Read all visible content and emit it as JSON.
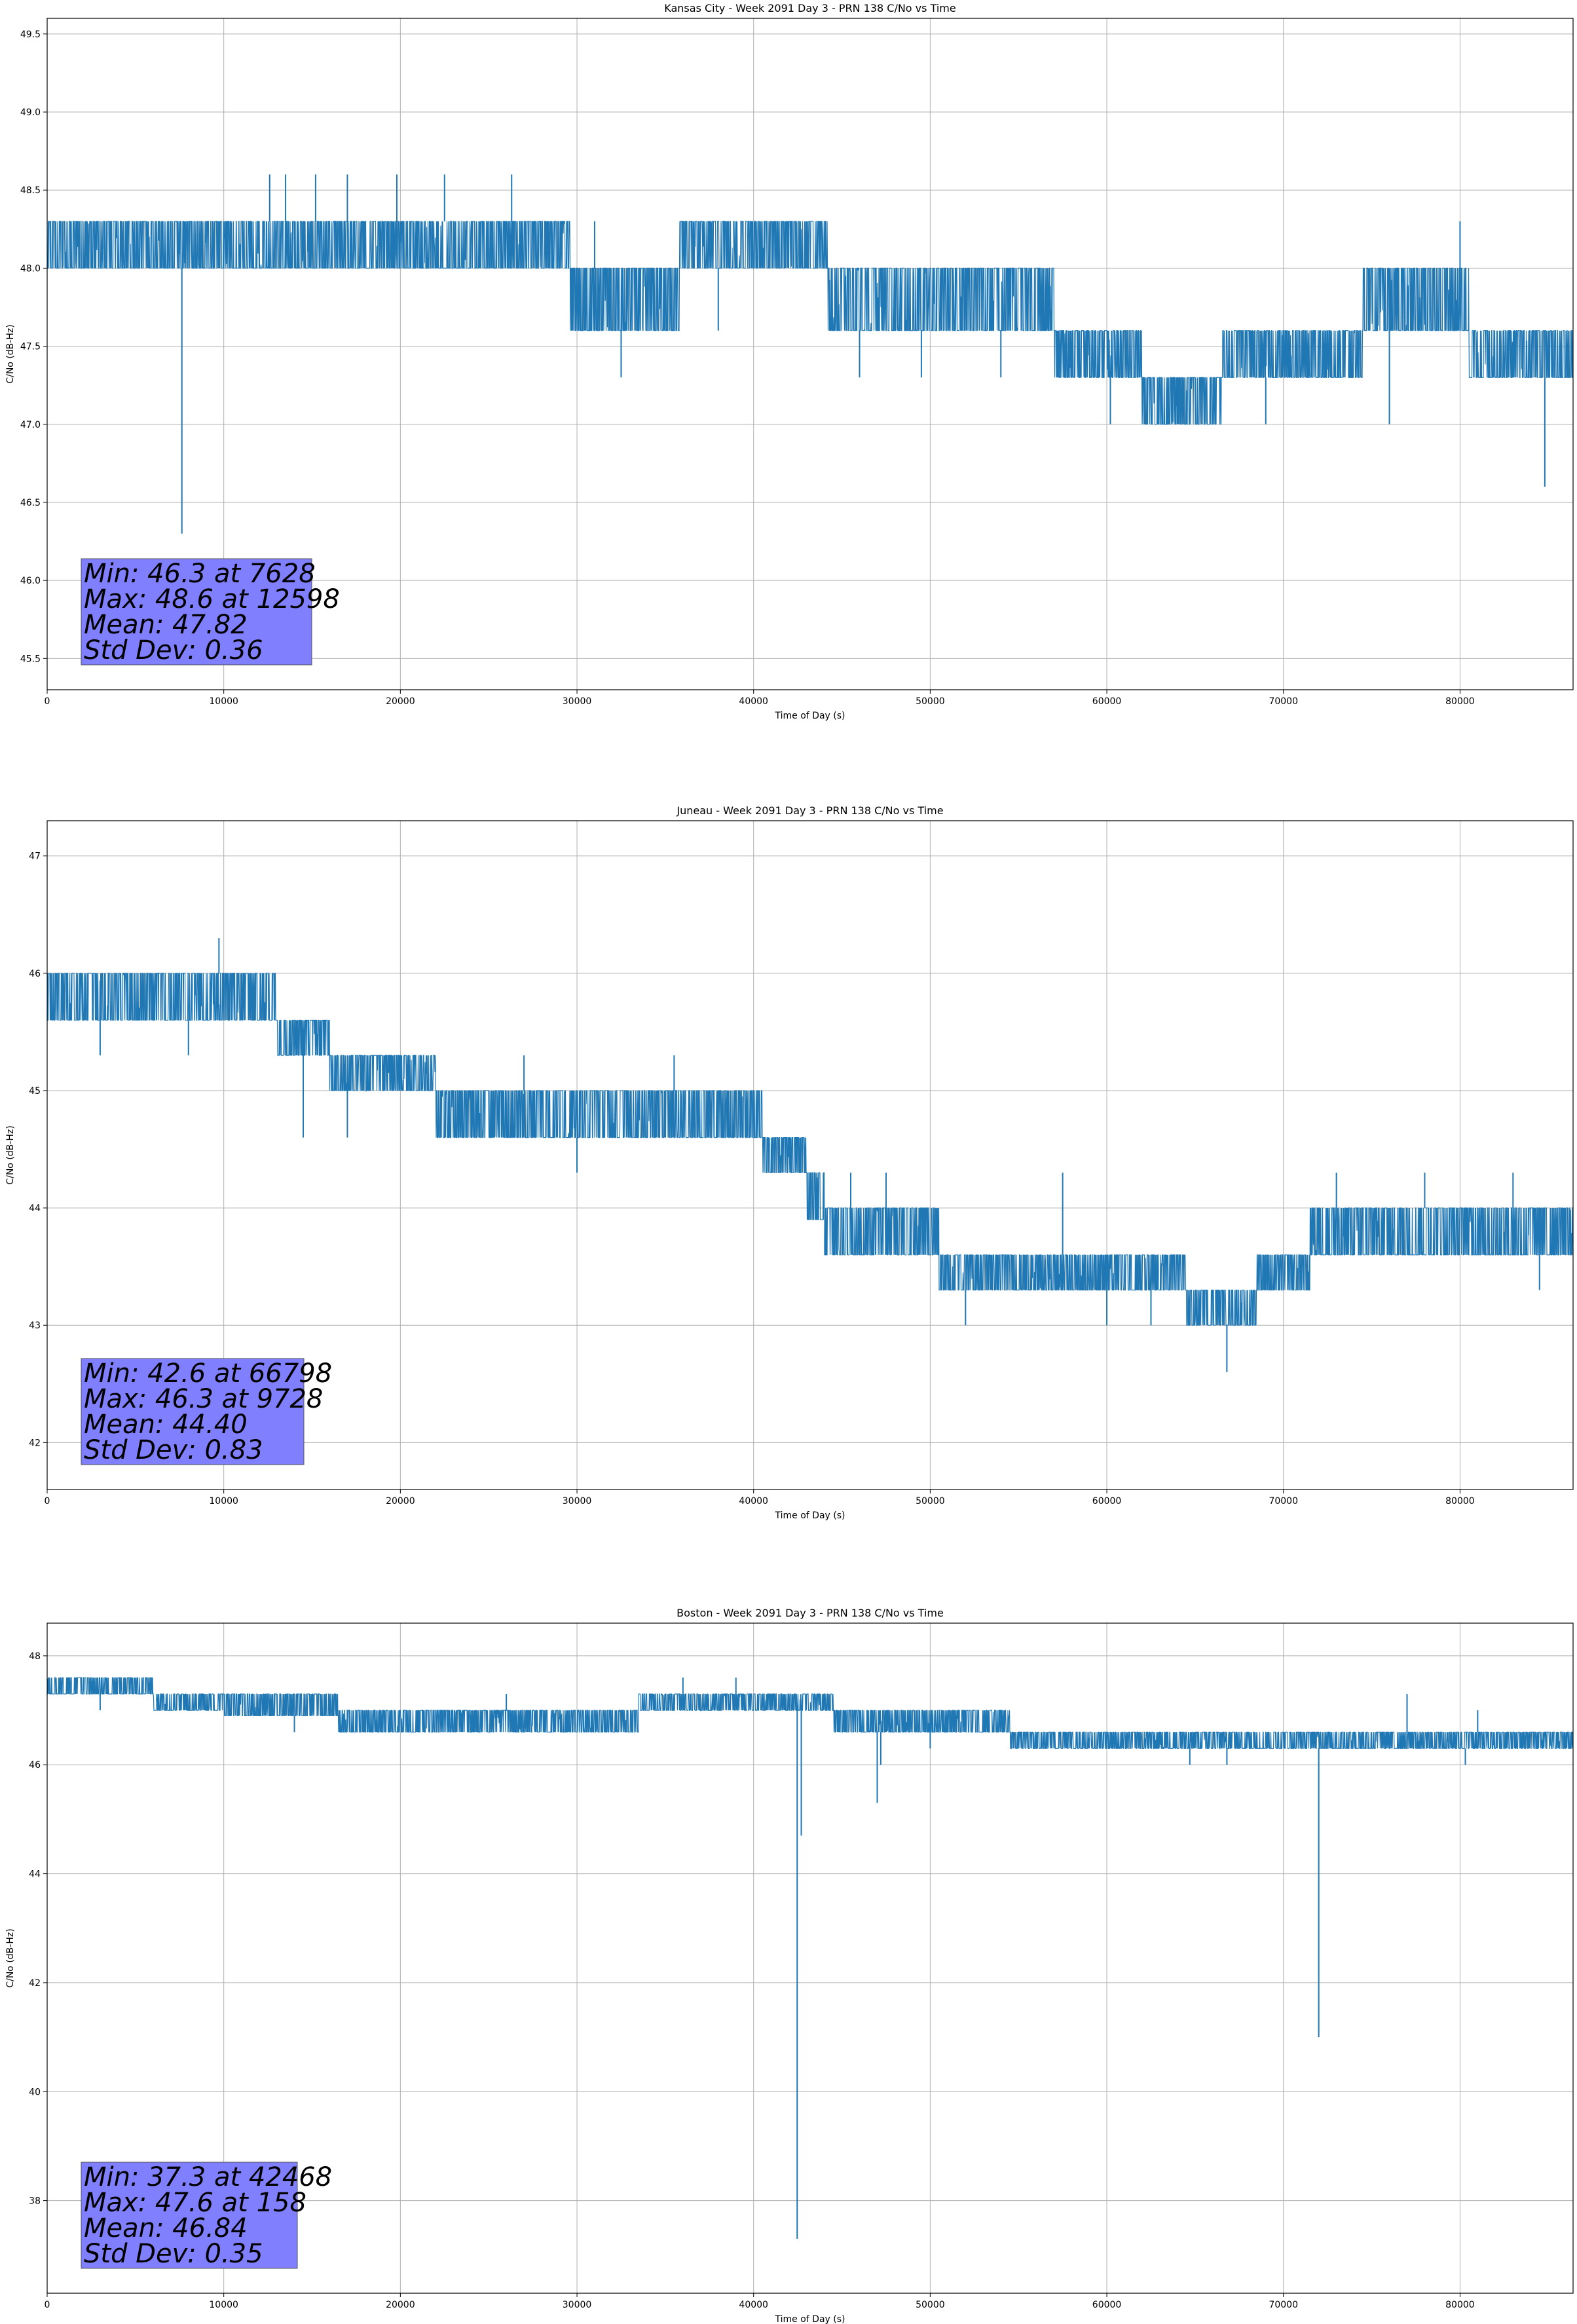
{
  "colors": {
    "series": "#1f77b4",
    "grid": "#b0b0b0",
    "statbox": "#8080ff"
  },
  "chart_data": [
    {
      "type": "line",
      "title": "Kansas City - Week 2091 Day 3 - PRN 138 C/No vs Time",
      "xlabel": "Time of Day (s)",
      "ylabel": "C/No (dB-Hz)",
      "xlim": [
        0,
        86400
      ],
      "ylim": [
        45.3,
        49.6
      ],
      "xticks": [
        0,
        10000,
        20000,
        30000,
        40000,
        50000,
        60000,
        70000,
        80000
      ],
      "yticks": [
        45.5,
        46.0,
        46.5,
        47.0,
        47.5,
        48.0,
        48.5,
        49.0,
        49.5
      ],
      "ytick_decimals": 1,
      "grid": true,
      "stats": [
        "Min: 46.3 at 7628",
        "Max: 48.6 at 12598",
        "Mean: 47.82",
        "Std Dev: 0.36"
      ],
      "series": [
        {
          "band": [
            [
              0,
              48.0,
              48.3
            ],
            [
              5000,
              48.0,
              48.3
            ],
            [
              12000,
              48.0,
              48.3
            ],
            [
              20000,
              48.0,
              48.3
            ],
            [
              29500,
              48.0,
              48.3
            ],
            [
              29600,
              47.6,
              48.0
            ],
            [
              35000,
              47.6,
              48.0
            ],
            [
              35800,
              48.0,
              48.3
            ],
            [
              44000,
              48.0,
              48.3
            ],
            [
              44200,
              47.6,
              48.0
            ],
            [
              56000,
              47.6,
              48.0
            ],
            [
              57000,
              47.3,
              47.6
            ],
            [
              61500,
              47.3,
              47.6
            ],
            [
              62000,
              47.0,
              47.3
            ],
            [
              66000,
              47.0,
              47.3
            ],
            [
              66500,
              47.3,
              47.6
            ],
            [
              74000,
              47.3,
              47.6
            ],
            [
              74500,
              47.6,
              48.0
            ],
            [
              80000,
              47.6,
              48.0
            ],
            [
              80500,
              47.3,
              47.6
            ],
            [
              86400,
              47.3,
              47.6
            ]
          ],
          "spikes": [
            [
              7628,
              46.3
            ],
            [
              12598,
              48.6
            ],
            [
              13500,
              48.6
            ],
            [
              15200,
              48.6
            ],
            [
              17000,
              48.6
            ],
            [
              19800,
              48.6
            ],
            [
              22500,
              48.6
            ],
            [
              26300,
              48.6
            ],
            [
              31000,
              48.3
            ],
            [
              32500,
              47.3
            ],
            [
              38000,
              47.6
            ],
            [
              42800,
              48.3
            ],
            [
              46000,
              47.3
            ],
            [
              49500,
              47.3
            ],
            [
              54000,
              47.3
            ],
            [
              60200,
              47.0
            ],
            [
              64000,
              47.0
            ],
            [
              69000,
              47.0
            ],
            [
              76000,
              47.0
            ],
            [
              80000,
              48.3
            ],
            [
              84800,
              46.6
            ]
          ]
        }
      ]
    },
    {
      "type": "line",
      "title": "Juneau - Week 2091 Day 3 - PRN 138 C/No vs Time",
      "xlabel": "Time of Day (s)",
      "ylabel": "C/No (dB-Hz)",
      "xlim": [
        0,
        86400
      ],
      "ylim": [
        41.6,
        47.3
      ],
      "xticks": [
        0,
        10000,
        20000,
        30000,
        40000,
        50000,
        60000,
        70000,
        80000
      ],
      "yticks": [
        42,
        43,
        44,
        45,
        46,
        47
      ],
      "ytick_decimals": 0,
      "grid": true,
      "stats": [
        "Min: 42.6 at 66798",
        "Max: 46.3 at 9728",
        "Mean: 44.40",
        "Std Dev: 0.83"
      ],
      "series": [
        {
          "band": [
            [
              0,
              45.6,
              46.0
            ],
            [
              12500,
              45.6,
              46.0
            ],
            [
              13000,
              45.3,
              45.6
            ],
            [
              15500,
              45.3,
              45.6
            ],
            [
              16000,
              45.0,
              45.3
            ],
            [
              21500,
              45.0,
              45.3
            ],
            [
              22000,
              44.6,
              45.0
            ],
            [
              40000,
              44.6,
              45.0
            ],
            [
              40500,
              44.3,
              44.6
            ],
            [
              42500,
              44.3,
              44.6
            ],
            [
              43000,
              43.9,
              44.3
            ],
            [
              44000,
              43.6,
              44.0
            ],
            [
              50000,
              43.6,
              44.0
            ],
            [
              50500,
              43.3,
              43.6
            ],
            [
              64000,
              43.3,
              43.6
            ],
            [
              64500,
              43.0,
              43.3
            ],
            [
              68000,
              43.0,
              43.3
            ],
            [
              68500,
              43.3,
              43.6
            ],
            [
              71000,
              43.3,
              43.6
            ],
            [
              71500,
              43.6,
              44.0
            ],
            [
              86400,
              43.6,
              44.0
            ]
          ],
          "spikes": [
            [
              9728,
              46.3
            ],
            [
              3000,
              45.3
            ],
            [
              8000,
              45.3
            ],
            [
              14500,
              44.6
            ],
            [
              17000,
              44.6
            ],
            [
              24000,
              44.6
            ],
            [
              27000,
              45.3
            ],
            [
              30000,
              44.3
            ],
            [
              35500,
              45.3
            ],
            [
              45500,
              44.3
            ],
            [
              47500,
              44.3
            ],
            [
              52000,
              43.0
            ],
            [
              57500,
              44.3
            ],
            [
              60000,
              43.0
            ],
            [
              62500,
              43.0
            ],
            [
              66798,
              42.6
            ],
            [
              73000,
              44.3
            ],
            [
              78000,
              44.3
            ],
            [
              83000,
              44.3
            ],
            [
              84500,
              43.3
            ]
          ]
        }
      ]
    },
    {
      "type": "line",
      "title": "Boston - Week 2091 Day 3 - PRN 138 C/No vs Time",
      "xlabel": "Time of Day (s)",
      "ylabel": "C/No (dB-Hz)",
      "xlim": [
        0,
        86400
      ],
      "ylim": [
        36.3,
        48.6
      ],
      "xticks": [
        0,
        10000,
        20000,
        30000,
        40000,
        50000,
        60000,
        70000,
        80000
      ],
      "yticks": [
        38,
        40,
        42,
        44,
        46,
        48
      ],
      "ytick_decimals": 0,
      "grid": true,
      "stats": [
        "Min: 37.3 at 42468",
        "Max: 47.6 at 158",
        "Mean: 46.84",
        "Std Dev: 0.35"
      ],
      "series": [
        {
          "band": [
            [
              0,
              47.3,
              47.6
            ],
            [
              5500,
              47.3,
              47.6
            ],
            [
              6000,
              47.0,
              47.3
            ],
            [
              9500,
              47.0,
              47.3
            ],
            [
              10000,
              46.9,
              47.3
            ],
            [
              16000,
              46.9,
              47.3
            ],
            [
              16500,
              46.6,
              47.0
            ],
            [
              33000,
              46.6,
              47.0
            ],
            [
              33500,
              47.0,
              47.3
            ],
            [
              44000,
              47.0,
              47.3
            ],
            [
              44500,
              46.6,
              47.0
            ],
            [
              54000,
              46.6,
              47.0
            ],
            [
              54500,
              46.3,
              46.6
            ],
            [
              86400,
              46.3,
              46.6
            ]
          ],
          "spikes": [
            [
              158,
              47.6
            ],
            [
              3000,
              47.0
            ],
            [
              8000,
              47.3
            ],
            [
              14000,
              46.6
            ],
            [
              21000,
              46.6
            ],
            [
              26000,
              47.3
            ],
            [
              36000,
              47.6
            ],
            [
              39000,
              47.6
            ],
            [
              42468,
              37.3
            ],
            [
              42700,
              44.7
            ],
            [
              47000,
              45.3
            ],
            [
              47200,
              46.0
            ],
            [
              50000,
              46.3
            ],
            [
              64700,
              46.0
            ],
            [
              66800,
              46.0
            ],
            [
              72000,
              41.0
            ],
            [
              77000,
              47.3
            ],
            [
              80300,
              46.0
            ],
            [
              81000,
              47.0
            ]
          ]
        }
      ]
    }
  ]
}
